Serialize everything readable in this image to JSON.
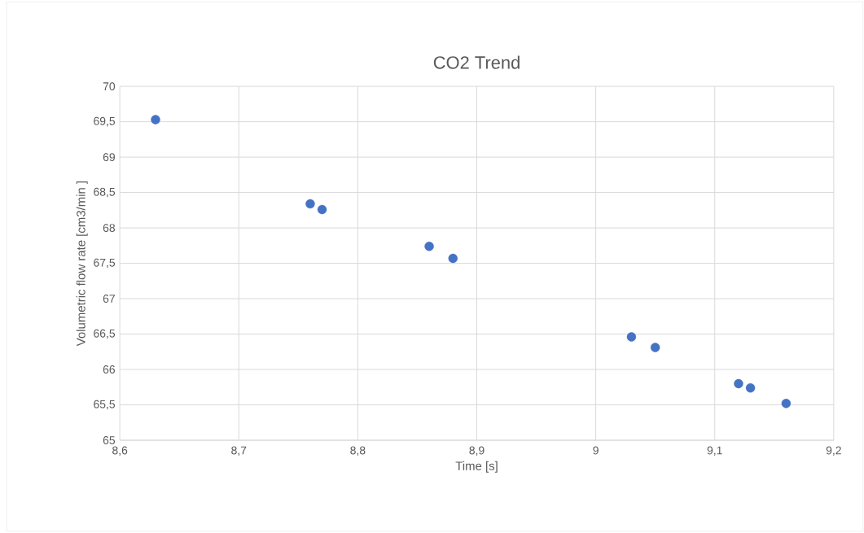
{
  "chart_data": {
    "type": "scatter",
    "title": "CO2 Trend",
    "xlabel": "Time [s]",
    "ylabel": "Volumetric flow rate [cm3/min ]",
    "x": [
      8.63,
      8.76,
      8.77,
      8.86,
      8.88,
      9.03,
      9.05,
      9.12,
      9.13,
      9.16
    ],
    "series": [
      {
        "color": "#4472c4",
        "values": [
          69.53,
          68.34,
          68.26,
          67.74,
          67.57,
          66.46,
          66.31,
          65.8,
          65.74,
          65.52
        ]
      }
    ],
    "xlim": [
      8.6,
      9.2
    ],
    "xticks": [
      {
        "value": 8.6,
        "label": "8,6"
      },
      {
        "value": 8.7,
        "label": "8,7"
      },
      {
        "value": 8.8,
        "label": "8,8"
      },
      {
        "value": 8.9,
        "label": "8,9"
      },
      {
        "value": 9,
        "label": "9"
      },
      {
        "value": 9.1,
        "label": "9,1"
      },
      {
        "value": 9.2,
        "label": "9,2"
      }
    ],
    "ylim": [
      65,
      70
    ],
    "yticks": [
      {
        "value": 65,
        "label": "65"
      },
      {
        "value": 65.5,
        "label": "65,5"
      },
      {
        "value": 66,
        "label": "66"
      },
      {
        "value": 66.5,
        "label": "66,5"
      },
      {
        "value": 67,
        "label": "67"
      },
      {
        "value": 67.5,
        "label": "67,5"
      },
      {
        "value": 68,
        "label": "68"
      },
      {
        "value": 68.5,
        "label": "68,5"
      },
      {
        "value": 69,
        "label": "69"
      },
      {
        "value": 69.5,
        "label": "69,5"
      },
      {
        "value": 70,
        "label": "70"
      }
    ],
    "grid": true,
    "marker": "circle"
  }
}
